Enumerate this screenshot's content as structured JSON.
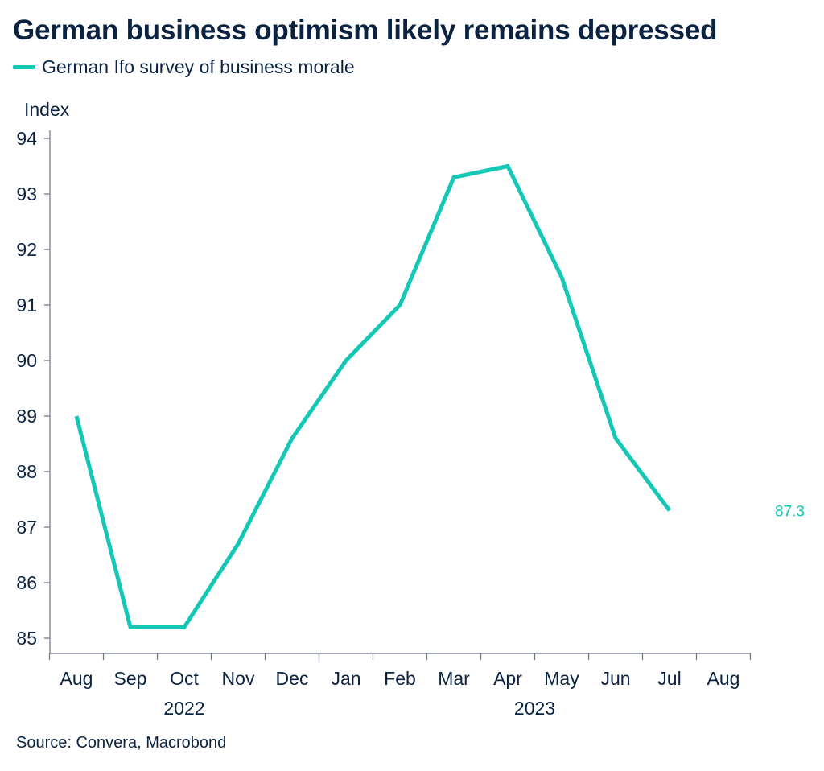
{
  "title": "German business optimism likely remains depressed",
  "source": "Source: Convera, Macrobond",
  "colors": {
    "series": "#14c8b5",
    "text": "#0b2341",
    "axis": "#6b7280"
  },
  "chart_data": {
    "type": "line",
    "title": "German business optimism likely remains depressed",
    "ylabel": "Index",
    "xlabel": "",
    "ylim": [
      85,
      94
    ],
    "yticks": [
      85,
      86,
      87,
      88,
      89,
      90,
      91,
      92,
      93,
      94
    ],
    "categories": [
      "Aug",
      "Sep",
      "Oct",
      "Nov",
      "Dec",
      "Jan",
      "Feb",
      "Mar",
      "Apr",
      "May",
      "Jun",
      "Jul",
      "Aug"
    ],
    "year_labels": [
      {
        "label": "2022",
        "from": 0,
        "to": 4
      },
      {
        "label": "2023",
        "from": 5,
        "to": 12
      }
    ],
    "series": [
      {
        "name": "German Ifo survey of business morale",
        "values": [
          89.0,
          85.2,
          85.2,
          86.7,
          88.6,
          90.0,
          91.0,
          93.3,
          93.5,
          91.5,
          88.6,
          87.3,
          null
        ]
      }
    ],
    "end_label": "87.3",
    "legend_position": "top-left",
    "grid": false
  }
}
